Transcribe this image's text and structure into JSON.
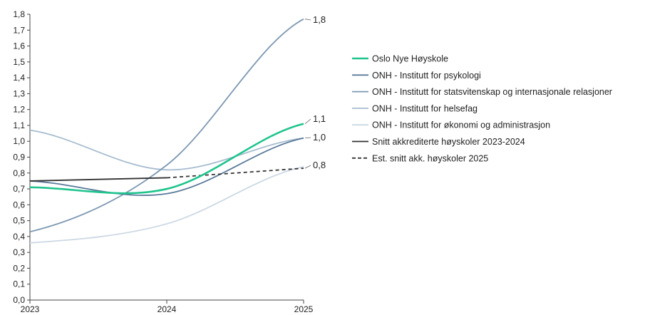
{
  "chart_data": {
    "type": "line",
    "title": "",
    "xlabel": "",
    "ylabel": "",
    "x": [
      "2023",
      "2024",
      "2025"
    ],
    "ylim": [
      0,
      1.8
    ],
    "yticks": [
      "0,0",
      "0,1",
      "0,2",
      "0,3",
      "0,4",
      "0,5",
      "0,6",
      "0,7",
      "0,8",
      "0,9",
      "1,0",
      "1,1",
      "1,2",
      "1,3",
      "1,4",
      "1,5",
      "1,6",
      "1,7",
      "1,8"
    ],
    "grid": false,
    "legend_position": "right",
    "series": [
      {
        "name": "Oslo Nye Høyskole",
        "color": "#1fc48e",
        "dash": "solid",
        "values": [
          0.71,
          0.7,
          1.11
        ]
      },
      {
        "name": "ONH - Institutt for psykologi",
        "color": "#5a7a9a",
        "dash": "solid",
        "values": [
          0.75,
          0.67,
          1.02
        ]
      },
      {
        "name": "ONH - Institutt for statsvitenskap og internasjonale relasjoner",
        "color": "#7d98b2",
        "dash": "solid",
        "values": [
          0.43,
          0.85,
          1.77
        ]
      },
      {
        "name": "ONH - Institutt for helsefag",
        "color": "#a6bccf",
        "dash": "solid",
        "values": [
          1.07,
          0.82,
          1.02
        ]
      },
      {
        "name": "ONH - Institutt for økonomi og administrasjon",
        "color": "#ccd8e4",
        "dash": "solid",
        "values": [
          0.36,
          0.48,
          0.84
        ]
      },
      {
        "name": "Snitt akkrediterte høyskoler 2023-2024",
        "color": "#333333",
        "dash": "solid",
        "values": [
          0.75,
          0.77,
          null
        ]
      },
      {
        "name": "Est. snitt akk. høyskoler 2025",
        "color": "#333333",
        "dash": "dashed",
        "values": [
          null,
          0.77,
          0.83
        ]
      }
    ],
    "end_labels": [
      "1,8",
      "1,1",
      "1,0",
      "0,8"
    ]
  }
}
